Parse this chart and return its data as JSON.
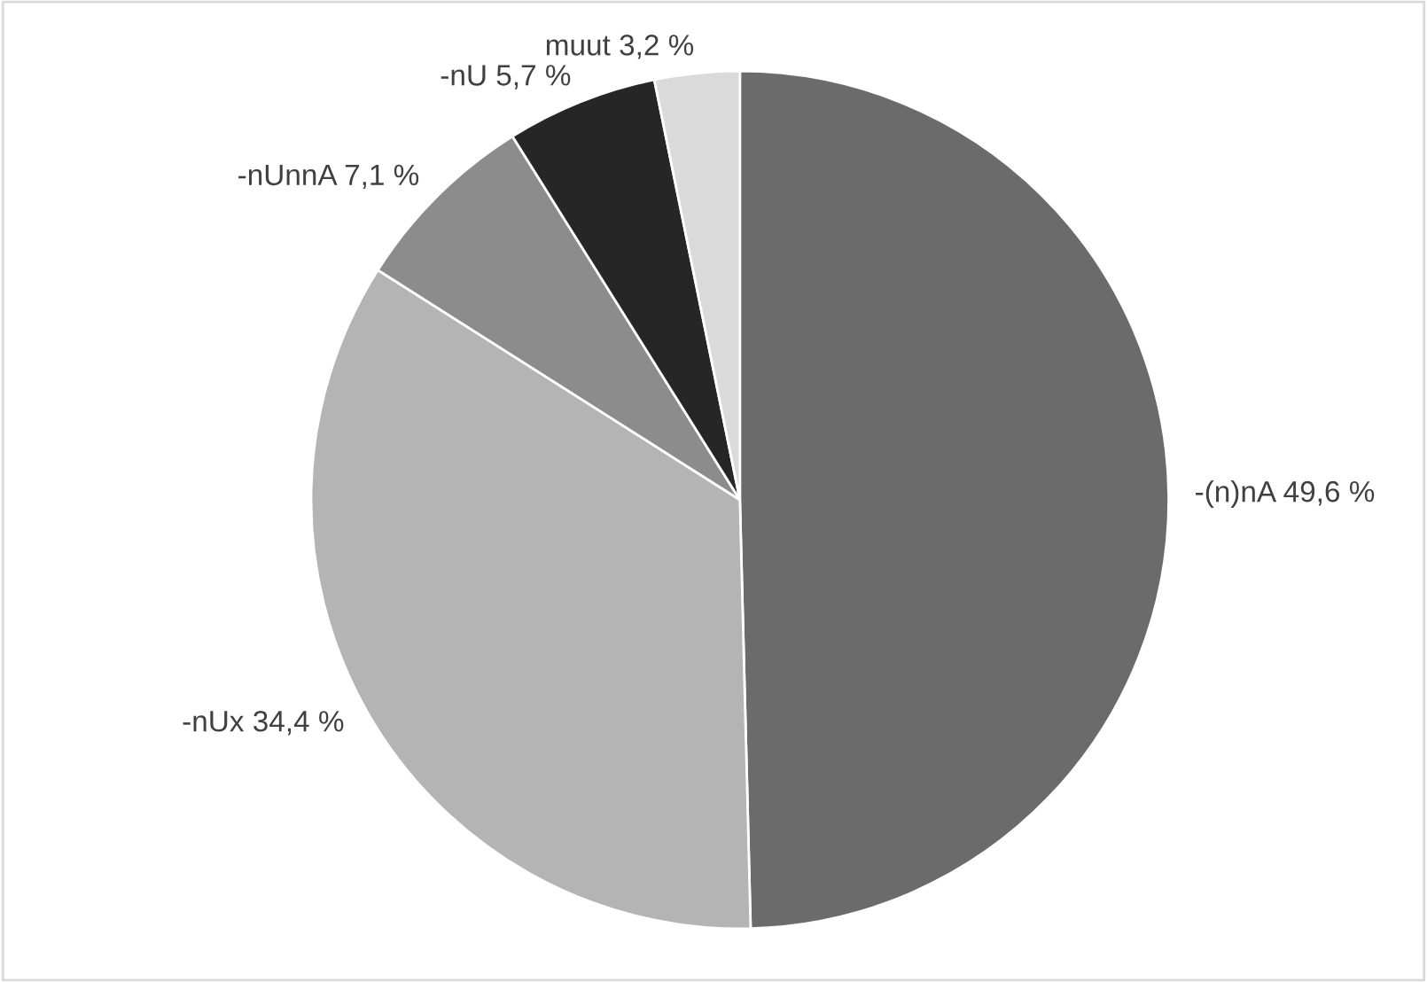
{
  "chart_data": {
    "type": "pie",
    "categories": [
      "-(n)nA",
      "-nUx",
      "-nUnnA",
      "-nU",
      "muut"
    ],
    "values": [
      49.6,
      34.4,
      7.1,
      5.7,
      3.2
    ],
    "value_labels": [
      "49,6 %",
      "34,4 %",
      "7,1 %",
      "5,7 %",
      "3,2 %"
    ],
    "colors": [
      "#6b6b6b",
      "#b4b4b4",
      "#8c8c8c",
      "#262626",
      "#dadada"
    ]
  }
}
